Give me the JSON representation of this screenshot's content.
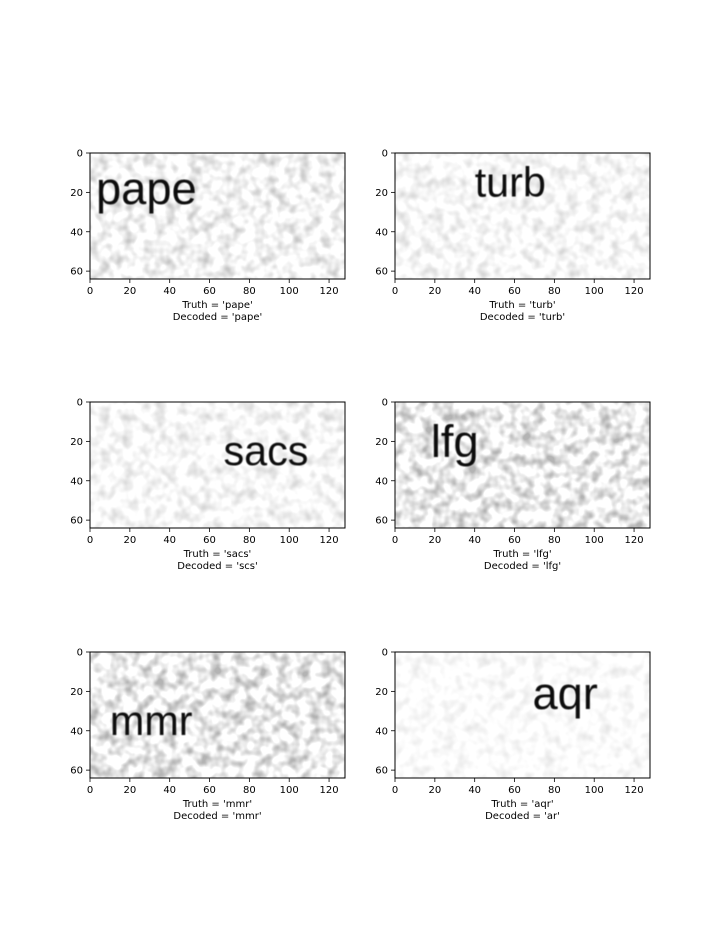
{
  "chart_data": [
    {
      "type": "image",
      "xticks": [
        0,
        20,
        40,
        60,
        80,
        100,
        120
      ],
      "yticks": [
        0,
        20,
        40,
        60
      ],
      "xlim": [
        0,
        128
      ],
      "ylim": [
        64,
        0
      ],
      "image_text": "pape",
      "text_x": 3,
      "text_y": 18,
      "text_size": 23,
      "noise": "medium",
      "truth_caption": "Truth = 'pape'",
      "decoded_caption": "Decoded = 'pape'"
    },
    {
      "type": "image",
      "xticks": [
        0,
        20,
        40,
        60,
        80,
        100,
        120
      ],
      "yticks": [
        0,
        20,
        40,
        60
      ],
      "xlim": [
        0,
        128
      ],
      "ylim": [
        64,
        0
      ],
      "image_text": "turb",
      "text_x": 40,
      "text_y": 15,
      "text_size": 21,
      "noise": "light",
      "truth_caption": "Truth = 'turb'",
      "decoded_caption": "Decoded = 'turb'"
    },
    {
      "type": "image",
      "xticks": [
        0,
        20,
        40,
        60,
        80,
        100,
        120
      ],
      "yticks": [
        0,
        20,
        40,
        60
      ],
      "xlim": [
        0,
        128
      ],
      "ylim": [
        64,
        0
      ],
      "image_text": "sacs",
      "text_x": 67,
      "text_y": 25,
      "text_size": 21,
      "noise": "light",
      "truth_caption": "Truth = 'sacs'",
      "decoded_caption": "Decoded = 'scs'"
    },
    {
      "type": "image",
      "xticks": [
        0,
        20,
        40,
        60,
        80,
        100,
        120
      ],
      "yticks": [
        0,
        20,
        40,
        60
      ],
      "xlim": [
        0,
        128
      ],
      "ylim": [
        64,
        0
      ],
      "image_text": "lfg",
      "text_x": 18,
      "text_y": 20,
      "text_size": 23,
      "noise": "heavy",
      "truth_caption": "Truth = 'lfg'",
      "decoded_caption": "Decoded = 'lfg'"
    },
    {
      "type": "image",
      "xticks": [
        0,
        20,
        40,
        60,
        80,
        100,
        120
      ],
      "yticks": [
        0,
        20,
        40,
        60
      ],
      "xlim": [
        0,
        128
      ],
      "ylim": [
        64,
        0
      ],
      "image_text": "mmr",
      "text_x": 10,
      "text_y": 35,
      "text_size": 21,
      "noise": "heavy",
      "truth_caption": "Truth = 'mmr'",
      "decoded_caption": "Decoded = 'mmr'"
    },
    {
      "type": "image",
      "xticks": [
        0,
        20,
        40,
        60,
        80,
        100,
        120
      ],
      "yticks": [
        0,
        20,
        40,
        60
      ],
      "xlim": [
        0,
        128
      ],
      "ylim": [
        64,
        0
      ],
      "image_text": "aqr",
      "text_x": 69,
      "text_y": 21,
      "text_size": 23,
      "noise": "very-light",
      "truth_caption": "Truth = 'aqr'",
      "decoded_caption": "Decoded = 'ar'"
    }
  ]
}
